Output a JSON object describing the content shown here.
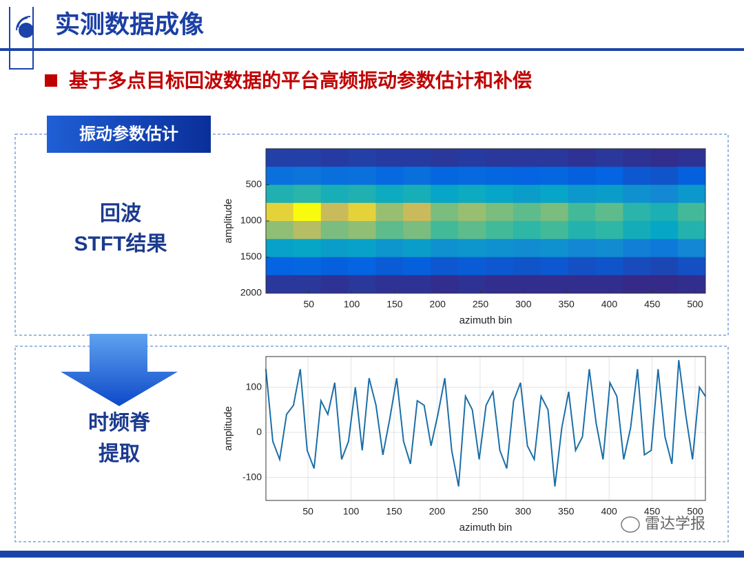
{
  "header": {
    "title": "实测数据成像",
    "subtitle": "基于多点目标回波数据的平台高频振动参数估计和补偿"
  },
  "section_tag": "振动参数估计",
  "step_labels": [
    [
      "回波",
      "STFT结果"
    ],
    [
      "时频脊",
      "提取"
    ]
  ],
  "watermark": "雷达学报",
  "chart_data": [
    {
      "type": "heatmap",
      "xlabel": "azimuth bin",
      "ylabel": "amplitude",
      "colormap": "parula",
      "y_reversed": true,
      "xlim": [
        0,
        512
      ],
      "ylim": [
        0,
        2000
      ],
      "xticks": [
        50,
        100,
        150,
        200,
        250,
        300,
        350,
        400,
        450,
        500
      ],
      "yticks": [
        500,
        1000,
        1500,
        2000
      ],
      "xbins": [
        0,
        32,
        64,
        96,
        128,
        160,
        192,
        224,
        256,
        288,
        320,
        352,
        384,
        416,
        448,
        480,
        512
      ],
      "ybins": [
        0,
        250,
        500,
        750,
        1000,
        1250,
        1500,
        1750,
        2000
      ],
      "values": [
        [
          0.1,
          0.1,
          0.09,
          0.1,
          0.09,
          0.09,
          0.08,
          0.09,
          0.08,
          0.08,
          0.08,
          0.07,
          0.08,
          0.07,
          0.06,
          0.07
        ],
        [
          0.24,
          0.25,
          0.23,
          0.24,
          0.21,
          0.23,
          0.2,
          0.21,
          0.2,
          0.19,
          0.2,
          0.18,
          0.19,
          0.16,
          0.15,
          0.18
        ],
        [
          0.52,
          0.55,
          0.5,
          0.52,
          0.47,
          0.5,
          0.44,
          0.47,
          0.44,
          0.41,
          0.44,
          0.39,
          0.41,
          0.36,
          0.33,
          0.39
        ],
        [
          0.81,
          0.85,
          0.77,
          0.81,
          0.72,
          0.77,
          0.68,
          0.72,
          0.68,
          0.64,
          0.68,
          0.6,
          0.64,
          0.55,
          0.51,
          0.6
        ],
        [
          0.71,
          0.75,
          0.68,
          0.71,
          0.64,
          0.68,
          0.6,
          0.64,
          0.6,
          0.56,
          0.6,
          0.53,
          0.56,
          0.49,
          0.45,
          0.53
        ],
        [
          0.43,
          0.45,
          0.41,
          0.43,
          0.38,
          0.41,
          0.36,
          0.38,
          0.36,
          0.34,
          0.36,
          0.32,
          0.34,
          0.29,
          0.27,
          0.32
        ],
        [
          0.19,
          0.2,
          0.18,
          0.19,
          0.17,
          0.18,
          0.16,
          0.17,
          0.16,
          0.15,
          0.16,
          0.14,
          0.15,
          0.13,
          0.12,
          0.14
        ],
        [
          0.08,
          0.08,
          0.07,
          0.08,
          0.07,
          0.07,
          0.06,
          0.07,
          0.06,
          0.06,
          0.06,
          0.06,
          0.06,
          0.05,
          0.05,
          0.06
        ]
      ]
    },
    {
      "type": "line",
      "xlabel": "azimuth bin",
      "ylabel": "amplitude",
      "color": "#1a6ea8",
      "grid": true,
      "xlim": [
        1,
        512
      ],
      "ylim": [
        -151,
        168
      ],
      "xticks": [
        50,
        100,
        150,
        200,
        250,
        300,
        350,
        400,
        450,
        500
      ],
      "yticks": [
        -100,
        0,
        100
      ],
      "x": [
        1,
        9,
        17,
        25,
        33,
        41,
        49,
        57,
        65,
        73,
        81,
        89,
        97,
        105,
        113,
        121,
        129,
        137,
        145,
        153,
        161,
        169,
        177,
        185,
        193,
        201,
        209,
        217,
        225,
        233,
        241,
        249,
        257,
        265,
        273,
        281,
        289,
        297,
        305,
        313,
        321,
        329,
        337,
        345,
        353,
        361,
        369,
        377,
        385,
        393,
        401,
        409,
        417,
        425,
        433,
        441,
        449,
        457,
        465,
        473,
        481,
        489,
        497,
        505,
        512
      ],
      "values": [
        140,
        -20,
        -60,
        40,
        60,
        140,
        -40,
        -80,
        70,
        40,
        110,
        -60,
        -20,
        100,
        -40,
        120,
        60,
        -50,
        30,
        120,
        -20,
        -70,
        70,
        60,
        -30,
        40,
        120,
        -40,
        -120,
        80,
        50,
        -60,
        60,
        90,
        -40,
        -80,
        70,
        110,
        -30,
        -60,
        80,
        50,
        -120,
        10,
        90,
        -40,
        -10,
        140,
        20,
        -60,
        110,
        80,
        -60,
        10,
        140,
        -50,
        -40,
        140,
        -10,
        -70,
        160,
        40,
        -60,
        100,
        80
      ]
    }
  ]
}
